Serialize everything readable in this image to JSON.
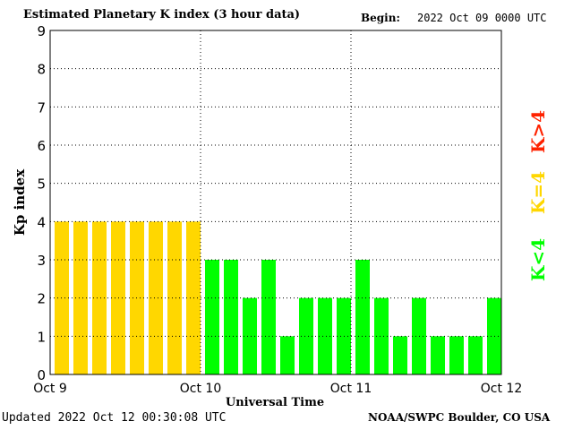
{
  "header": {
    "title": "Estimated Planetary K index (3 hour data)",
    "begin_label": "Begin:",
    "begin_value": "2022 Oct 09 0000 UTC"
  },
  "footer": {
    "updated": "Updated 2022 Oct 12 00:30:08 UTC",
    "credit": "NOAA/SWPC Boulder, CO USA"
  },
  "colors": {
    "below_4": "#00ff00",
    "equal_4": "#ffd700",
    "above_4": "#ff2200"
  },
  "chart_data": {
    "type": "bar",
    "title": "Estimated Planetary K index (3 hour data)",
    "xlabel": "Universal Time",
    "ylabel": "Kp index",
    "ylim": [
      0,
      9
    ],
    "yticks": [
      "0",
      "1",
      "2",
      "3",
      "4",
      "5",
      "6",
      "7",
      "8",
      "9"
    ],
    "xticks": [
      "Oct 9",
      "Oct 10",
      "Oct 11",
      "Oct 12"
    ],
    "grid": true,
    "bins_per_day": 8,
    "values": [
      4,
      4,
      4,
      4,
      4,
      4,
      4,
      4,
      3,
      3,
      2,
      3,
      1,
      2,
      2,
      2,
      3,
      2,
      1,
      2,
      1,
      1,
      1,
      2
    ],
    "legend": [
      {
        "label": "K<4",
        "color": "#00ff00"
      },
      {
        "label": "K=4",
        "color": "#ffd700"
      },
      {
        "label": "K>4",
        "color": "#ff2200"
      }
    ]
  }
}
